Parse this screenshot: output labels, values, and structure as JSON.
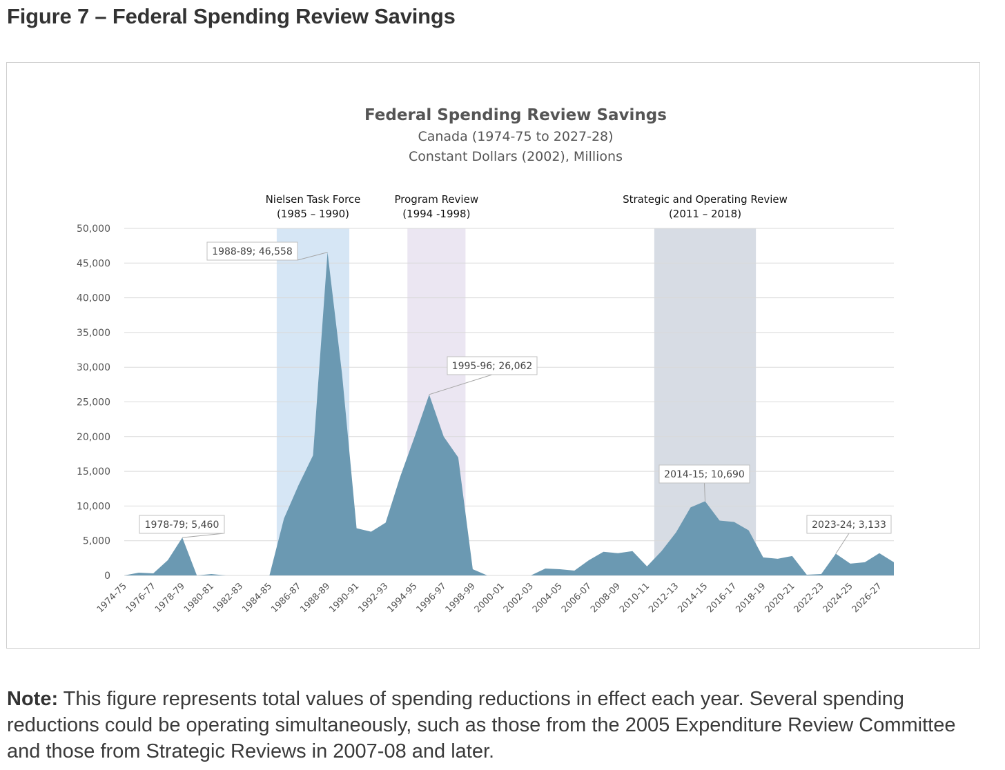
{
  "figure": {
    "title": "Figure 7 – Federal Spending Review Savings",
    "note_label": "Note:",
    "note_text": " This figure represents total values of spending reductions in effect each year. Several spending reductions could be operating simultaneously, such as those from the 2005 Expenditure Review Committee and those from Strategic Reviews in 2007-08 and later."
  },
  "chart_data": {
    "type": "area",
    "title": "Federal Spending Review Savings",
    "subtitle_lines": [
      "Canada (1974-75 to 2027-28)",
      "Constant Dollars (2002), Millions"
    ],
    "xlabel": "",
    "ylabel": "",
    "ylim": [
      0,
      50000
    ],
    "y_ticks": [
      0,
      5000,
      10000,
      15000,
      20000,
      25000,
      30000,
      35000,
      40000,
      45000,
      50000
    ],
    "y_tick_labels": [
      "0",
      "5,000",
      "10,000",
      "15,000",
      "20,000",
      "25,000",
      "30,000",
      "35,000",
      "40,000",
      "45,000",
      "50,000"
    ],
    "grid": true,
    "legend": "none",
    "colors": {
      "area": "#6b99b2",
      "gridline": "#d9d9d9",
      "band_nielsen": "#d6e6f5",
      "band_program": "#ebe6f2",
      "band_strategic": "#d7dce4"
    },
    "x": [
      "1974-75",
      "1975-76",
      "1976-77",
      "1977-78",
      "1978-79",
      "1979-80",
      "1980-81",
      "1981-82",
      "1982-83",
      "1983-84",
      "1984-85",
      "1985-86",
      "1986-87",
      "1987-88",
      "1988-89",
      "1989-90",
      "1990-91",
      "1991-92",
      "1992-93",
      "1993-94",
      "1994-95",
      "1995-96",
      "1996-97",
      "1997-98",
      "1998-99",
      "1999-00",
      "2000-01",
      "2001-02",
      "2002-03",
      "2003-04",
      "2004-05",
      "2005-06",
      "2006-07",
      "2007-08",
      "2008-09",
      "2009-10",
      "2010-11",
      "2011-12",
      "2012-13",
      "2013-14",
      "2014-15",
      "2015-16",
      "2016-17",
      "2017-18",
      "2018-19",
      "2019-20",
      "2020-21",
      "2021-22",
      "2022-23",
      "2023-24",
      "2024-25",
      "2025-26",
      "2026-27",
      "2027-28"
    ],
    "x_tick_labels": [
      "1974-75",
      "1976-77",
      "1978-79",
      "1980-81",
      "1982-83",
      "1984-85",
      "1986-87",
      "1988-89",
      "1990-91",
      "1992-93",
      "1994-95",
      "1996-97",
      "1998-99",
      "2000-01",
      "2002-03",
      "2004-05",
      "2006-07",
      "2008-09",
      "2010-11",
      "2012-13",
      "2014-15",
      "2016-17",
      "2018-19",
      "2020-21",
      "2022-23",
      "2024-25",
      "2026-27"
    ],
    "series": [
      {
        "name": "",
        "values": [
          0,
          400,
          300,
          2200,
          5460,
          0,
          200,
          0,
          0,
          0,
          0,
          8200,
          13000,
          17300,
          46558,
          29000,
          6800,
          6300,
          7600,
          14200,
          20000,
          26062,
          20000,
          17000,
          900,
          0,
          0,
          0,
          0,
          1000,
          900,
          700,
          2200,
          3400,
          3200,
          3500,
          1300,
          3500,
          6200,
          9800,
          10690,
          7900,
          7700,
          6500,
          2600,
          2400,
          2800,
          100,
          200,
          3133,
          1700,
          1900,
          3200,
          1900
        ]
      }
    ],
    "bands": [
      {
        "label_line1": "Nielsen Task Force",
        "label_line2": "(1985 – 1990)",
        "from": "1985-86",
        "to": "1989-90"
      },
      {
        "label_line1": "Program Review",
        "label_line2": "(1994 -1998)",
        "from": "1994-95",
        "to": "1997-98"
      },
      {
        "label_line1": "Strategic and Operating Review",
        "label_line2": "(2011 – 2018)",
        "from": "2011-12",
        "to": "2017-18"
      }
    ],
    "annotations": [
      {
        "text": "1978-79; 5,460",
        "x": "1978-79",
        "y": 5460
      },
      {
        "text": "1988-89; 46,558",
        "x": "1988-89",
        "y": 46558
      },
      {
        "text": "1995-96; 26,062",
        "x": "1995-96",
        "y": 26062
      },
      {
        "text": "2014-15; 10,690",
        "x": "2014-15",
        "y": 10690
      },
      {
        "text": "2023-24; 3,133",
        "x": "2023-24",
        "y": 3133
      }
    ]
  }
}
